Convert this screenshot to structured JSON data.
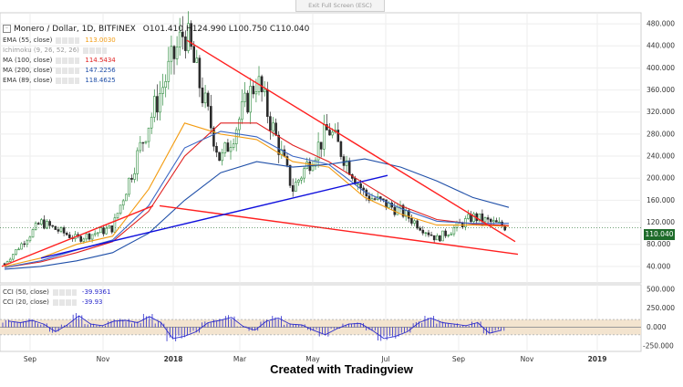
{
  "exit_label": "Exit Full Screen (ESC)",
  "header": {
    "collapse_icon": "minus-box-icon",
    "symbol": "Monero / Dollar, 1D, BITFINEX",
    "ohlc": "O101.410 H124.990 L100.750 C110.040"
  },
  "indicators": [
    {
      "label": "EMA (55, close)",
      "value": "113.0030",
      "color": "#f39c12"
    },
    {
      "label": "Ichimoku (9, 26, 52, 26)",
      "value": "",
      "color": "#999999"
    },
    {
      "label": "MA (100, close)",
      "value": "114.5434",
      "color": "#e02020"
    },
    {
      "label": "MA (200, close)",
      "value": "147.2256",
      "color": "#1f4fa8"
    },
    {
      "label": "EMA (89, close)",
      "value": "118.4625",
      "color": "#1f4fa8"
    }
  ],
  "cci": [
    {
      "label": "CCI (50, close)",
      "value": "-39.9361"
    },
    {
      "label": "CCI (20, close)",
      "value": "-39.93"
    }
  ],
  "price_tag": "110.040",
  "credit": "Created with Tradingview",
  "colors": {
    "up": "#2e8b3e",
    "down": "#2a2a2a",
    "trend_red": "#ff2020",
    "trend_blue": "#1010dd",
    "cci": "#2b2bcc",
    "cci_band": "#f3e4cf",
    "grid": "#eeeeee"
  },
  "chart_data": [
    {
      "type": "line",
      "title": "Monero / Dollar, 1D, BITFINEX",
      "y_ticks": [
        40,
        80,
        120,
        160,
        200,
        240,
        280,
        320,
        360,
        400,
        440,
        480
      ],
      "ylim": [
        10,
        500
      ],
      "x_ticks": [
        "Sep",
        "Nov",
        "2018",
        "Mar",
        "May",
        "Jul",
        "Sep",
        "Nov",
        "2019"
      ],
      "series": [
        {
          "name": "Monero / Dollar",
          "x": [
            "Aug 2017",
            "Sep 2017",
            "Oct 2017",
            "Nov 2017",
            "Dec 2017",
            "Jan 2018",
            "Feb 2018",
            "Mar 2018",
            "Apr 2018",
            "May 2018",
            "Jun 2018",
            "Jul 2018",
            "Aug 2018",
            "Sep 2018",
            "Oct 2018"
          ],
          "values": [
            45,
            120,
            90,
            110,
            300,
            470,
            230,
            380,
            180,
            290,
            170,
            140,
            90,
            130,
            110
          ]
        },
        {
          "name": "EMA (55, close)",
          "values": [
            40,
            55,
            80,
            95,
            180,
            300,
            280,
            270,
            230,
            220,
            165,
            135,
            115,
            115,
            113
          ]
        },
        {
          "name": "MA (100, close)",
          "values": [
            38,
            48,
            65,
            85,
            140,
            240,
            300,
            300,
            260,
            230,
            190,
            150,
            125,
            117,
            114
          ]
        },
        {
          "name": "MA (200, close)",
          "values": [
            35,
            40,
            50,
            65,
            100,
            160,
            210,
            230,
            220,
            225,
            235,
            220,
            195,
            165,
            147
          ]
        },
        {
          "name": "EMA (89, close)",
          "values": [
            38,
            50,
            70,
            88,
            150,
            255,
            285,
            275,
            240,
            225,
            175,
            145,
            122,
            118,
            118
          ]
        }
      ],
      "legend": "top-left"
    },
    {
      "type": "bar",
      "y_ticks": [
        500,
        250,
        0,
        -250
      ],
      "ylim": [
        -320,
        560
      ],
      "series": [
        {
          "name": "CCI (50, close)",
          "values": [
            80,
            60,
            90,
            40,
            -60,
            30,
            150,
            40,
            20,
            80,
            90,
            60,
            140,
            60,
            -150,
            -120,
            -60,
            60,
            90,
            130,
            10,
            -40,
            80,
            120,
            40,
            30,
            -40,
            -100,
            -20,
            40,
            50,
            -40,
            -150,
            -120,
            -60,
            60,
            120,
            60,
            40,
            20,
            60,
            -80,
            -40
          ]
        }
      ]
    }
  ]
}
